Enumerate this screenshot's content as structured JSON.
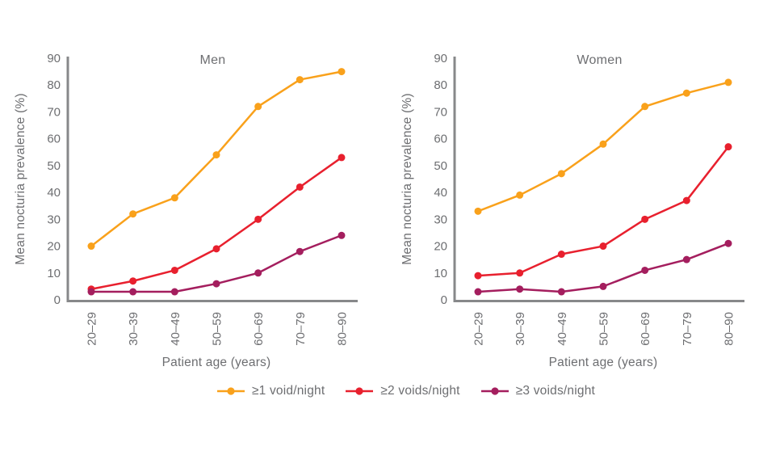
{
  "figure": {
    "background": "#ffffff",
    "text_color": "#6D6E71",
    "axis_color": "#87888A"
  },
  "legend": {
    "position": "bottom-center",
    "items": [
      {
        "label": "≥1 void/night",
        "color": "#F9A11B",
        "marker": "line-dot"
      },
      {
        "label": "≥2 voids/night",
        "color": "#E8202E",
        "marker": "line-dot"
      },
      {
        "label": "≥3 voids/night",
        "color": "#A41E5E",
        "marker": "line-dot"
      }
    ]
  },
  "chart_data": [
    {
      "type": "line",
      "title": "Men",
      "xlabel": "Patient age (years)",
      "ylabel": "Mean nocturia prevalence (%)",
      "ylim": [
        0,
        90
      ],
      "ytick_step": 10,
      "yticks": [
        0,
        10,
        20,
        30,
        40,
        50,
        60,
        70,
        80,
        90
      ],
      "grid": false,
      "categories": [
        "20–29",
        "30–39",
        "40–49",
        "50–59",
        "60–69",
        "70–79",
        "80–90"
      ],
      "series": [
        {
          "name": "≥1 void/night",
          "color": "#F9A11B",
          "values": [
            20,
            32,
            38,
            54,
            72,
            82,
            85
          ]
        },
        {
          "name": "≥2 voids/night",
          "color": "#E8202E",
          "values": [
            4,
            7,
            11,
            19,
            30,
            42,
            53
          ]
        },
        {
          "name": "≥3 voids/night",
          "color": "#A41E5E",
          "values": [
            3,
            3,
            3,
            6,
            10,
            18,
            24
          ]
        }
      ]
    },
    {
      "type": "line",
      "title": "Women",
      "xlabel": "Patient age (years)",
      "ylabel": "Mean nocturia prevalence (%)",
      "ylim": [
        0,
        90
      ],
      "ytick_step": 10,
      "yticks": [
        0,
        10,
        20,
        30,
        40,
        50,
        60,
        70,
        80,
        90
      ],
      "grid": false,
      "categories": [
        "20–29",
        "30–39",
        "40–49",
        "50–59",
        "60–69",
        "70–79",
        "80–90"
      ],
      "series": [
        {
          "name": "≥1 void/night",
          "color": "#F9A11B",
          "values": [
            33,
            39,
            47,
            58,
            72,
            77,
            81
          ]
        },
        {
          "name": "≥2 voids/night",
          "color": "#E8202E",
          "values": [
            9,
            10,
            17,
            20,
            30,
            37,
            57
          ]
        },
        {
          "name": "≥3 voids/night",
          "color": "#A41E5E",
          "values": [
            3,
            4,
            3,
            5,
            11,
            15,
            21
          ]
        }
      ]
    }
  ]
}
